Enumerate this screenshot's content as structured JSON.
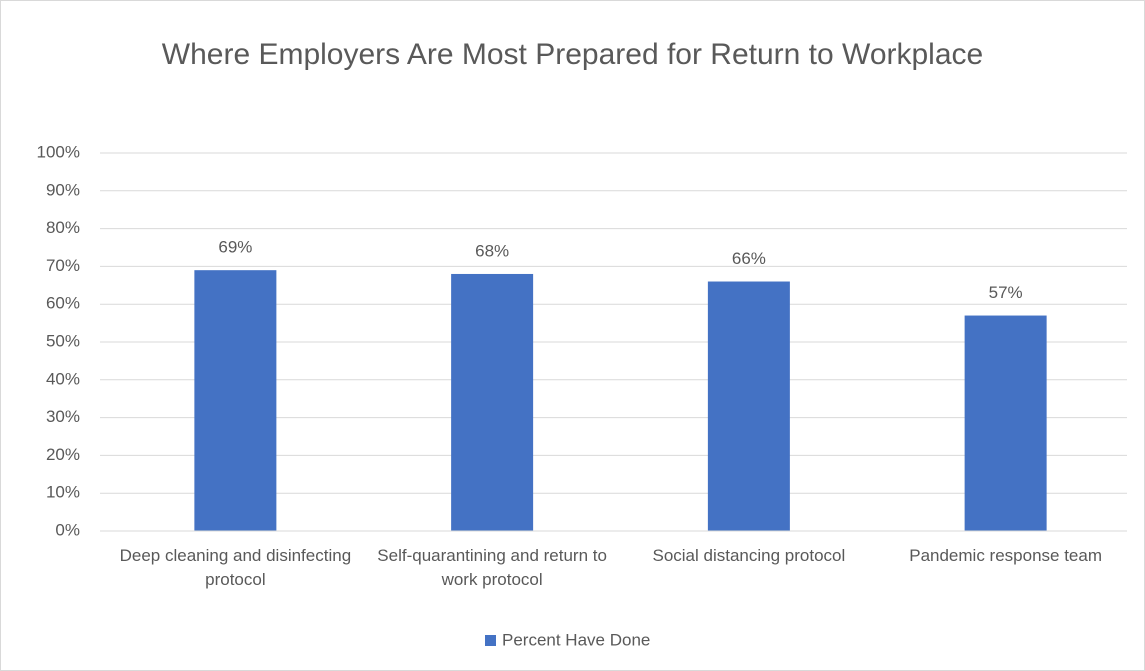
{
  "chart_data": {
    "type": "bar",
    "title": "Where Employers Are Most Prepared for Return to Workplace",
    "categories": [
      "Deep cleaning and disinfecting protocol",
      "Self-quarantining and return to work protocol",
      "Social distancing protocol",
      "Pandemic response team"
    ],
    "series": [
      {
        "name": "Percent Have Done",
        "color": "#4472c4",
        "values": [
          69,
          68,
          66,
          57
        ],
        "value_labels": [
          "69%",
          "68%",
          "66%",
          "57%"
        ]
      }
    ],
    "ylim": [
      0,
      100
    ],
    "yticks": [
      {
        "value": 0,
        "label": "0%"
      },
      {
        "value": 10,
        "label": "10%"
      },
      {
        "value": 20,
        "label": "20%"
      },
      {
        "value": 30,
        "label": "30%"
      },
      {
        "value": 40,
        "label": "40%"
      },
      {
        "value": 50,
        "label": "50%"
      },
      {
        "value": 60,
        "label": "60%"
      },
      {
        "value": 70,
        "label": "70%"
      },
      {
        "value": 80,
        "label": "80%"
      },
      {
        "value": 90,
        "label": "90%"
      },
      {
        "value": 100,
        "label": "100%"
      }
    ],
    "grid": true,
    "legend": "bottom"
  }
}
